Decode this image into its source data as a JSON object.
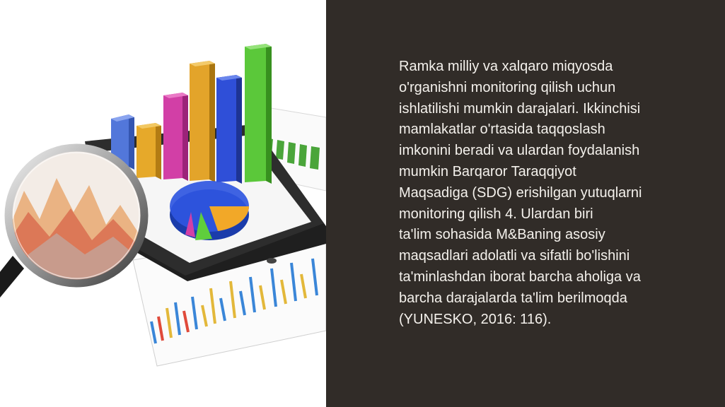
{
  "slide": {
    "background_color": "#ffffff",
    "panel_color": "#312c28",
    "text_color": "#f4f1ec",
    "paragraph_lines": [
      "Ramka milliy va xalqaro miqyosda",
      "o'rganishni monitoring qilish uchun",
      "ishlatilishi mumkin darajalari. Ikkinchisi",
      "mamlakatlar o'rtasida taqqoslash",
      "imkonini beradi va ulardan foydalanish",
      "mumkin Barqaror Taraqqiyot",
      "Maqsadiga (SDG) erishilgan yutuqlarni",
      "monitoring qilish 4. Ulardan biri",
      "ta'lim sohasida M&Baning asosiy",
      "maqsadlari adolatli va sifatli bo'lishini",
      "ta'minlashdan iborat barcha aholiga va",
      "barcha darajalarda ta'lim berilmoqda",
      "(YUNESKO, 2016: 116)."
    ]
  },
  "illustration": {
    "bar_colors": [
      "#4a6fd6",
      "#e6a92a",
      "#d23fa6",
      "#e0a22a",
      "#2f4fd8",
      "#5bc83a"
    ],
    "pie_colors": [
      "#2f56e0",
      "#f2a828",
      "#5fce3c",
      "#d23fa6"
    ],
    "icon": "magnifying-glass-icon"
  }
}
